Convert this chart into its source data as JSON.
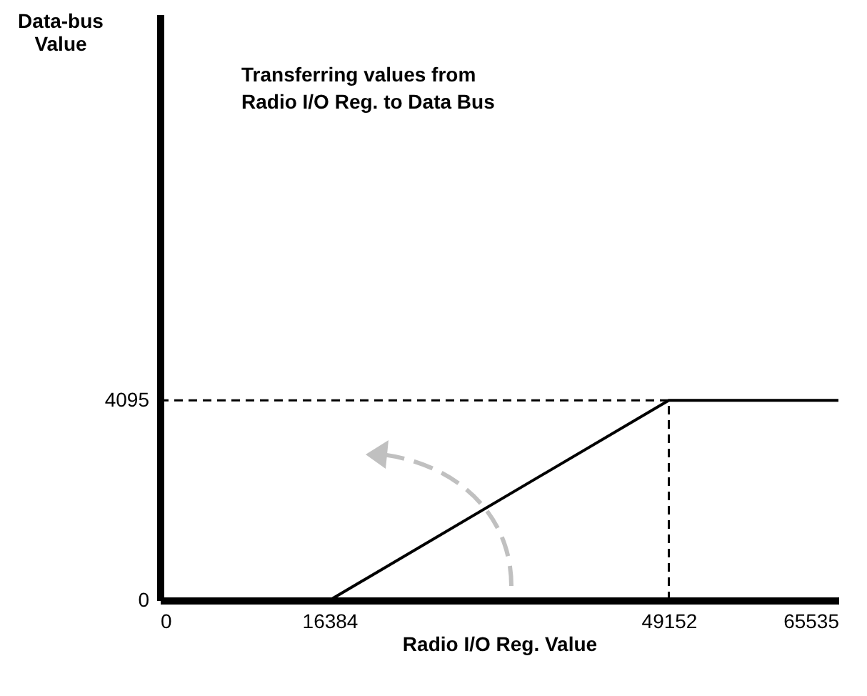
{
  "chart_data": {
    "type": "line",
    "title": "Transferring values from\nRadio I/O Reg. to Data Bus",
    "xlabel": "Radio I/O Reg. Value",
    "ylabel": "Data-bus\nValue",
    "x": [
      16384,
      49152,
      65535
    ],
    "series": [
      {
        "color": "#000000",
        "values": [
          0,
          4095,
          4095
        ]
      }
    ],
    "xlim": [
      0,
      65535
    ],
    "xticks": [
      0,
      16384,
      49152,
      65535
    ],
    "ylim": [
      0,
      12000
    ],
    "yticks": [
      0,
      4095
    ],
    "ref_lines": [
      {
        "axis": "y",
        "value": 4095,
        "line_style": "dashed",
        "color": "#000000"
      },
      {
        "axis": "x",
        "value": 49152,
        "line_style": "dashed",
        "color": "#000000"
      }
    ],
    "grid": false,
    "marker": "none",
    "line_style": "solid"
  }
}
